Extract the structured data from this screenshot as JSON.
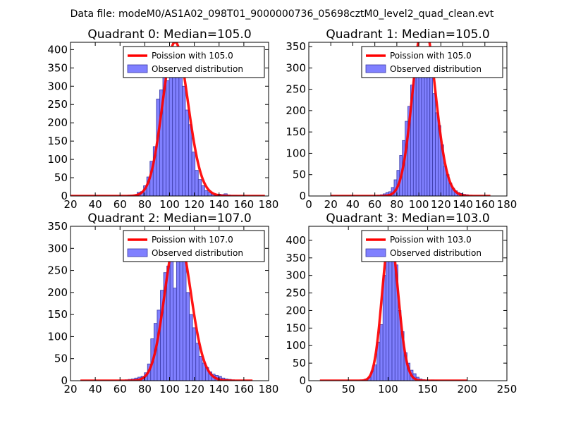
{
  "figure_title": "Data file: modeM0/AS1A02_098T01_9000000736_05698cztM0_level2_quad_clean.evt",
  "colors": {
    "bar_fill": "#8080ff",
    "bar_edge": "#3a3aa8",
    "poisson_line": "#ff0000",
    "axes": "#000000"
  },
  "chart_data": [
    {
      "type": "bar",
      "title": "Quadrant 0: Median=105.0",
      "legend": [
        "Poission with 105.0",
        "Observed distribution"
      ],
      "legend_position": "top-right",
      "median": 105.0,
      "poisson_mean": 105.0,
      "xlim": [
        20,
        180
      ],
      "ylim": [
        0,
        420
      ],
      "xticks": [
        20,
        40,
        60,
        80,
        100,
        120,
        140,
        160,
        180
      ],
      "yticks": [
        0,
        50,
        100,
        150,
        200,
        250,
        300,
        350,
        400
      ],
      "curve_x_range": [
        20,
        177
      ],
      "bin_width": 2.6,
      "bins_start": [
        66.0,
        68.6,
        71.2,
        73.8,
        76.4,
        79.0,
        81.6,
        84.2,
        86.8,
        89.4,
        92.0,
        94.6,
        97.2,
        99.8,
        102.4,
        105.0,
        107.6,
        110.2,
        112.8,
        115.4,
        118.0,
        120.6,
        123.2,
        125.8,
        128.4,
        131.0,
        133.6,
        136.2,
        138.8,
        141.4,
        144.0,
        146.6,
        149.2,
        151.8,
        154.4
      ],
      "counts": [
        2,
        3,
        2,
        10,
        12,
        28,
        52,
        95,
        135,
        265,
        290,
        330,
        315,
        400,
        400,
        370,
        400,
        300,
        235,
        195,
        120,
        70,
        45,
        28,
        15,
        10,
        5,
        3,
        5,
        4,
        6,
        3,
        2,
        2,
        1
      ]
    },
    {
      "type": "bar",
      "title": "Quadrant 1: Median=105.0",
      "legend": [
        "Poission with 105.0",
        "Observed distribution"
      ],
      "legend_position": "top-right",
      "median": 105.0,
      "poisson_mean": 105.0,
      "xlim": [
        0,
        180
      ],
      "ylim": [
        0,
        360
      ],
      "xticks": [
        0,
        20,
        40,
        60,
        80,
        100,
        120,
        140,
        160,
        180
      ],
      "yticks": [
        0,
        50,
        100,
        150,
        200,
        250,
        300,
        350
      ],
      "curve_x_range": [
        20,
        165
      ],
      "bin_width": 2.5,
      "bins_start": [
        62.5,
        65.0,
        67.5,
        70.0,
        72.5,
        75.0,
        77.5,
        80.0,
        82.5,
        85.0,
        87.5,
        90.0,
        92.5,
        95.0,
        97.5,
        100.0,
        102.5,
        105.0,
        107.5,
        110.0,
        112.5,
        115.0,
        117.5,
        120.0,
        122.5,
        125.0,
        127.5,
        130.0,
        132.5,
        135.0,
        137.5,
        140.0,
        142.5
      ],
      "counts": [
        2,
        3,
        5,
        8,
        10,
        20,
        38,
        60,
        95,
        130,
        175,
        210,
        260,
        300,
        310,
        330,
        345,
        340,
        335,
        300,
        240,
        195,
        165,
        120,
        70,
        50,
        30,
        18,
        12,
        8,
        6,
        4,
        3
      ]
    },
    {
      "type": "bar",
      "title": "Quadrant 2: Median=107.0",
      "legend": [
        "Poission with 107.0",
        "Observed distribution"
      ],
      "legend_position": "top-right",
      "median": 107.0,
      "poisson_mean": 107.0,
      "xlim": [
        20,
        180
      ],
      "ylim": [
        0,
        350
      ],
      "xticks": [
        20,
        40,
        60,
        80,
        100,
        120,
        140,
        160,
        180
      ],
      "yticks": [
        0,
        50,
        100,
        150,
        200,
        250,
        300,
        350
      ],
      "curve_x_range": [
        28,
        167
      ],
      "bin_width": 2.6,
      "bins_start": [
        64.0,
        66.6,
        69.2,
        71.8,
        74.4,
        77.0,
        79.6,
        82.2,
        84.8,
        87.4,
        90.0,
        92.6,
        95.2,
        97.8,
        100.4,
        103.0,
        105.6,
        108.2,
        110.8,
        113.4,
        116.0,
        118.6,
        121.2,
        123.8,
        126.4,
        129.0,
        131.6,
        134.2,
        136.8,
        139.4,
        142.0,
        144.6,
        147.2,
        149.8
      ],
      "counts": [
        2,
        3,
        4,
        6,
        8,
        10,
        18,
        38,
        95,
        130,
        160,
        205,
        245,
        260,
        270,
        210,
        300,
        300,
        320,
        200,
        150,
        120,
        85,
        55,
        40,
        30,
        20,
        15,
        12,
        10,
        6,
        4,
        3,
        2
      ]
    },
    {
      "type": "bar",
      "title": "Quadrant 3: Median=103.0",
      "legend": [
        "Poission with 103.0",
        "Observed distribution"
      ],
      "legend_position": "top-right",
      "median": 103.0,
      "poisson_mean": 103.0,
      "xlim": [
        0,
        250
      ],
      "ylim": [
        0,
        440
      ],
      "xticks": [
        0,
        50,
        100,
        150,
        200,
        250
      ],
      "yticks": [
        0,
        50,
        100,
        150,
        200,
        250,
        300,
        350,
        400
      ],
      "curve_x_range": [
        14,
        200
      ],
      "bin_width": 3.8,
      "bins_start": [
        67.0,
        70.8,
        74.6,
        78.4,
        82.2,
        86.0,
        89.8,
        93.6,
        97.4,
        101.2,
        105.0,
        108.8,
        112.6,
        116.4,
        120.2,
        124.0,
        127.8,
        131.6,
        135.4,
        139.2,
        143.0,
        146.8,
        150.6,
        154.4,
        158.2
      ],
      "counts": [
        2,
        5,
        10,
        28,
        45,
        110,
        160,
        300,
        400,
        425,
        390,
        330,
        200,
        140,
        80,
        50,
        30,
        20,
        10,
        5,
        3,
        2,
        1,
        2,
        1
      ]
    }
  ]
}
